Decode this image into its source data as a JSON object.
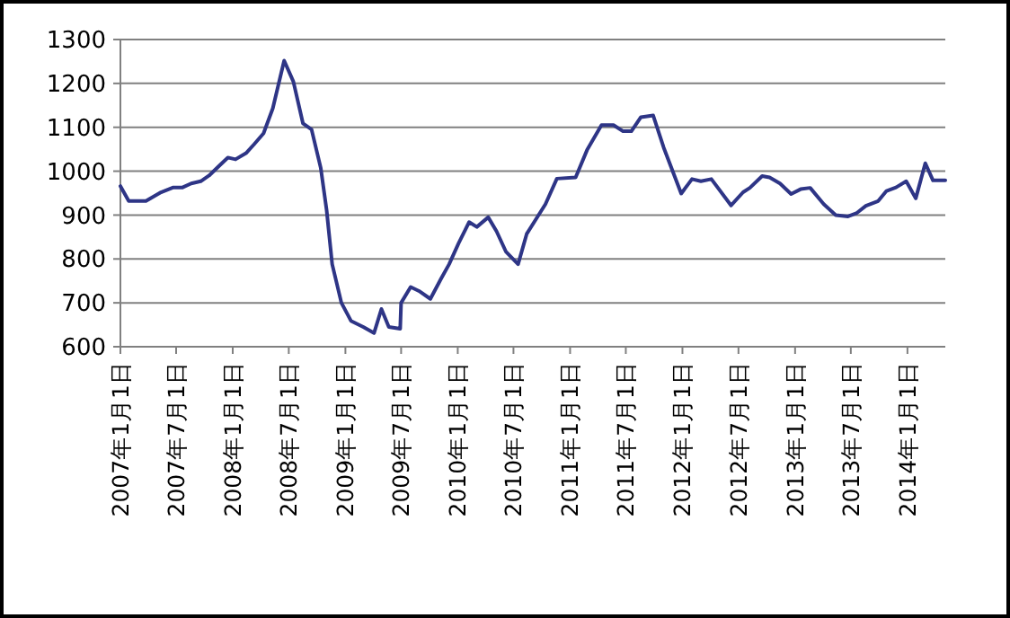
{
  "chart_data": {
    "type": "line",
    "grid": "y",
    "marker": "none",
    "line_style": "solid",
    "ylim": [
      600,
      1300
    ],
    "yticks": [
      600,
      700,
      800,
      900,
      1000,
      1100,
      1200,
      1300
    ],
    "xlim": [
      "2007-01-01",
      "2014-05-04"
    ],
    "xticks": [
      {
        "value": "2007-01-01",
        "label": "2007年1月1日"
      },
      {
        "value": "2007-07-01",
        "label": "2007年7月1日"
      },
      {
        "value": "2008-01-01",
        "label": "2008年1月1日"
      },
      {
        "value": "2008-07-01",
        "label": "2008年7月1日"
      },
      {
        "value": "2009-01-01",
        "label": "2009年1月1日"
      },
      {
        "value": "2009-07-01",
        "label": "2009年7月1日"
      },
      {
        "value": "2010-01-01",
        "label": "2010年1月1日"
      },
      {
        "value": "2010-07-01",
        "label": "2010年7月1日"
      },
      {
        "value": "2011-01-01",
        "label": "2011年1月1日"
      },
      {
        "value": "2011-07-01",
        "label": "2011年7月1日"
      },
      {
        "value": "2012-01-01",
        "label": "2012年1月1日"
      },
      {
        "value": "2012-07-01",
        "label": "2012年7月1日"
      },
      {
        "value": "2013-01-01",
        "label": "2013年1月1日"
      },
      {
        "value": "2013-07-01",
        "label": "2013年7月1日"
      },
      {
        "value": "2014-01-01",
        "label": "2014年1月1日"
      }
    ],
    "x": [
      "2007-01-01",
      "2007-01-28",
      "2007-03-25",
      "2007-05-13",
      "2007-06-22",
      "2007-07-22",
      "2007-08-19",
      "2007-09-19",
      "2007-10-16",
      "2007-11-16",
      "2007-12-16",
      "2008-01-10",
      "2008-02-13",
      "2008-03-10",
      "2008-04-10",
      "2008-05-10",
      "2008-06-16",
      "2008-07-16",
      "2008-08-16",
      "2008-09-13",
      "2008-10-13",
      "2008-11-01",
      "2008-11-19",
      "2008-12-19",
      "2009-01-19",
      "2009-02-28",
      "2009-04-04",
      "2009-04-28",
      "2009-05-22",
      "2009-06-28",
      "2009-07-01",
      "2009-08-01",
      "2009-08-28",
      "2009-10-04",
      "2009-11-07",
      "2009-12-04",
      "2010-01-04",
      "2010-02-07",
      "2010-03-04",
      "2010-04-10",
      "2010-05-07",
      "2010-06-07",
      "2010-07-16",
      "2010-08-13",
      "2010-10-13",
      "2010-11-19",
      "2011-01-19",
      "2011-02-25",
      "2011-04-13",
      "2011-05-22",
      "2011-06-22",
      "2011-07-19",
      "2011-08-19",
      "2011-09-28",
      "2011-11-01",
      "2011-12-28",
      "2012-02-01",
      "2012-03-01",
      "2012-04-04",
      "2012-06-07",
      "2012-07-16",
      "2012-08-07",
      "2012-09-16",
      "2012-10-10",
      "2012-11-13",
      "2012-12-19",
      "2013-01-19",
      "2013-02-19",
      "2013-04-04",
      "2013-05-13",
      "2013-06-22",
      "2013-07-19",
      "2013-08-19",
      "2013-09-28",
      "2013-10-25",
      "2013-11-25",
      "2013-12-28",
      "2014-01-28",
      "2014-02-28",
      "2014-03-25",
      "2014-05-04"
    ],
    "series": [
      {
        "color": "#2e3586",
        "values": [
          966,
          932,
          932,
          952,
          963,
          963,
          972,
          977,
          990,
          1011,
          1031,
          1027,
          1041,
          1061,
          1086,
          1143,
          1252,
          1204,
          1109,
          1095,
          1007,
          911,
          788,
          700,
          659,
          645,
          631,
          686,
          645,
          641,
          700,
          736,
          727,
          709,
          754,
          788,
          836,
          884,
          873,
          895,
          863,
          816,
          788,
          857,
          925,
          983,
          986,
          1048,
          1105,
          1105,
          1091,
          1091,
          1123,
          1127,
          1054,
          949,
          982,
          977,
          982,
          922,
          952,
          962,
          989,
          986,
          972,
          948,
          959,
          962,
          925,
          900,
          897,
          904,
          921,
          932,
          955,
          963,
          977,
          938,
          1018,
          979,
          979
        ]
      }
    ]
  }
}
